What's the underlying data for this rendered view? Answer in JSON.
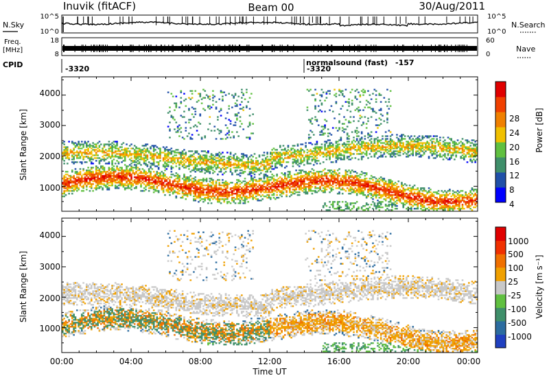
{
  "header": {
    "title": "Inuvik (fitACF)",
    "beam": "Beam 00",
    "date": "30/Aug/2011"
  },
  "nsky": {
    "label": "N.Sky",
    "ticks": [
      "10^5",
      "10^0"
    ],
    "right_ticks": [
      "10^5",
      "10^0"
    ],
    "right_label": "N.Search"
  },
  "freq": {
    "label_line1": "Freq.",
    "label_line2": "[MHz]",
    "ticks": [
      "18",
      "8"
    ],
    "right_ticks": [
      "60",
      "0"
    ],
    "right_label": "Nave"
  },
  "cpid": {
    "label": "CPID",
    "values": [
      "-3320",
      "-3320"
    ],
    "mode": "normalsound (fast)",
    "mode_id": "-157"
  },
  "power_panel": {
    "ylabel": "Slant Range [km]",
    "yticks": [
      "4000",
      "3000",
      "2000",
      "1000"
    ],
    "colorbar_label": "Power [dB]",
    "colorbar_ticks": [
      "28",
      "24",
      "20",
      "16",
      "12",
      "8",
      "4"
    ],
    "colors": [
      "#0000ff",
      "#2050a8",
      "#3f8f6a",
      "#60c040",
      "#f0c000",
      "#f08000",
      "#f04000",
      "#e00000"
    ]
  },
  "velocity_panel": {
    "ylabel": "Slant Range [km]",
    "yticks": [
      "4000",
      "3000",
      "2000",
      "1000"
    ],
    "colorbar_label": "Velocity [m s⁻¹]",
    "colorbar_ticks": [
      "1000",
      "500",
      "100",
      "25",
      "-25",
      "-100",
      "-500",
      "-1000"
    ],
    "colors": [
      "#2040c0",
      "#2c6ca0",
      "#3f8f6a",
      "#60c040",
      "#c8c8c8",
      "#f0a000",
      "#f07000",
      "#f03000",
      "#e00000"
    ]
  },
  "xaxis": {
    "ticks": [
      "00:00",
      "04:00",
      "08:00",
      "12:00",
      "16:00",
      "20:00",
      "00:00"
    ],
    "label": "Time UT"
  },
  "chart_data": {
    "type": "heatmap",
    "title": "Inuvik (fitACF)",
    "subtitle": "Beam 00",
    "date": "30/Aug/2011",
    "x_range_hours": [
      0,
      24
    ],
    "y_range_km": [
      180,
      4600
    ],
    "xlabel": "Time UT",
    "ylabel": "Slant Range [km]",
    "power_scale_db": [
      0,
      32
    ],
    "velocity_scale_ms": [
      -1000,
      1000
    ]
  }
}
